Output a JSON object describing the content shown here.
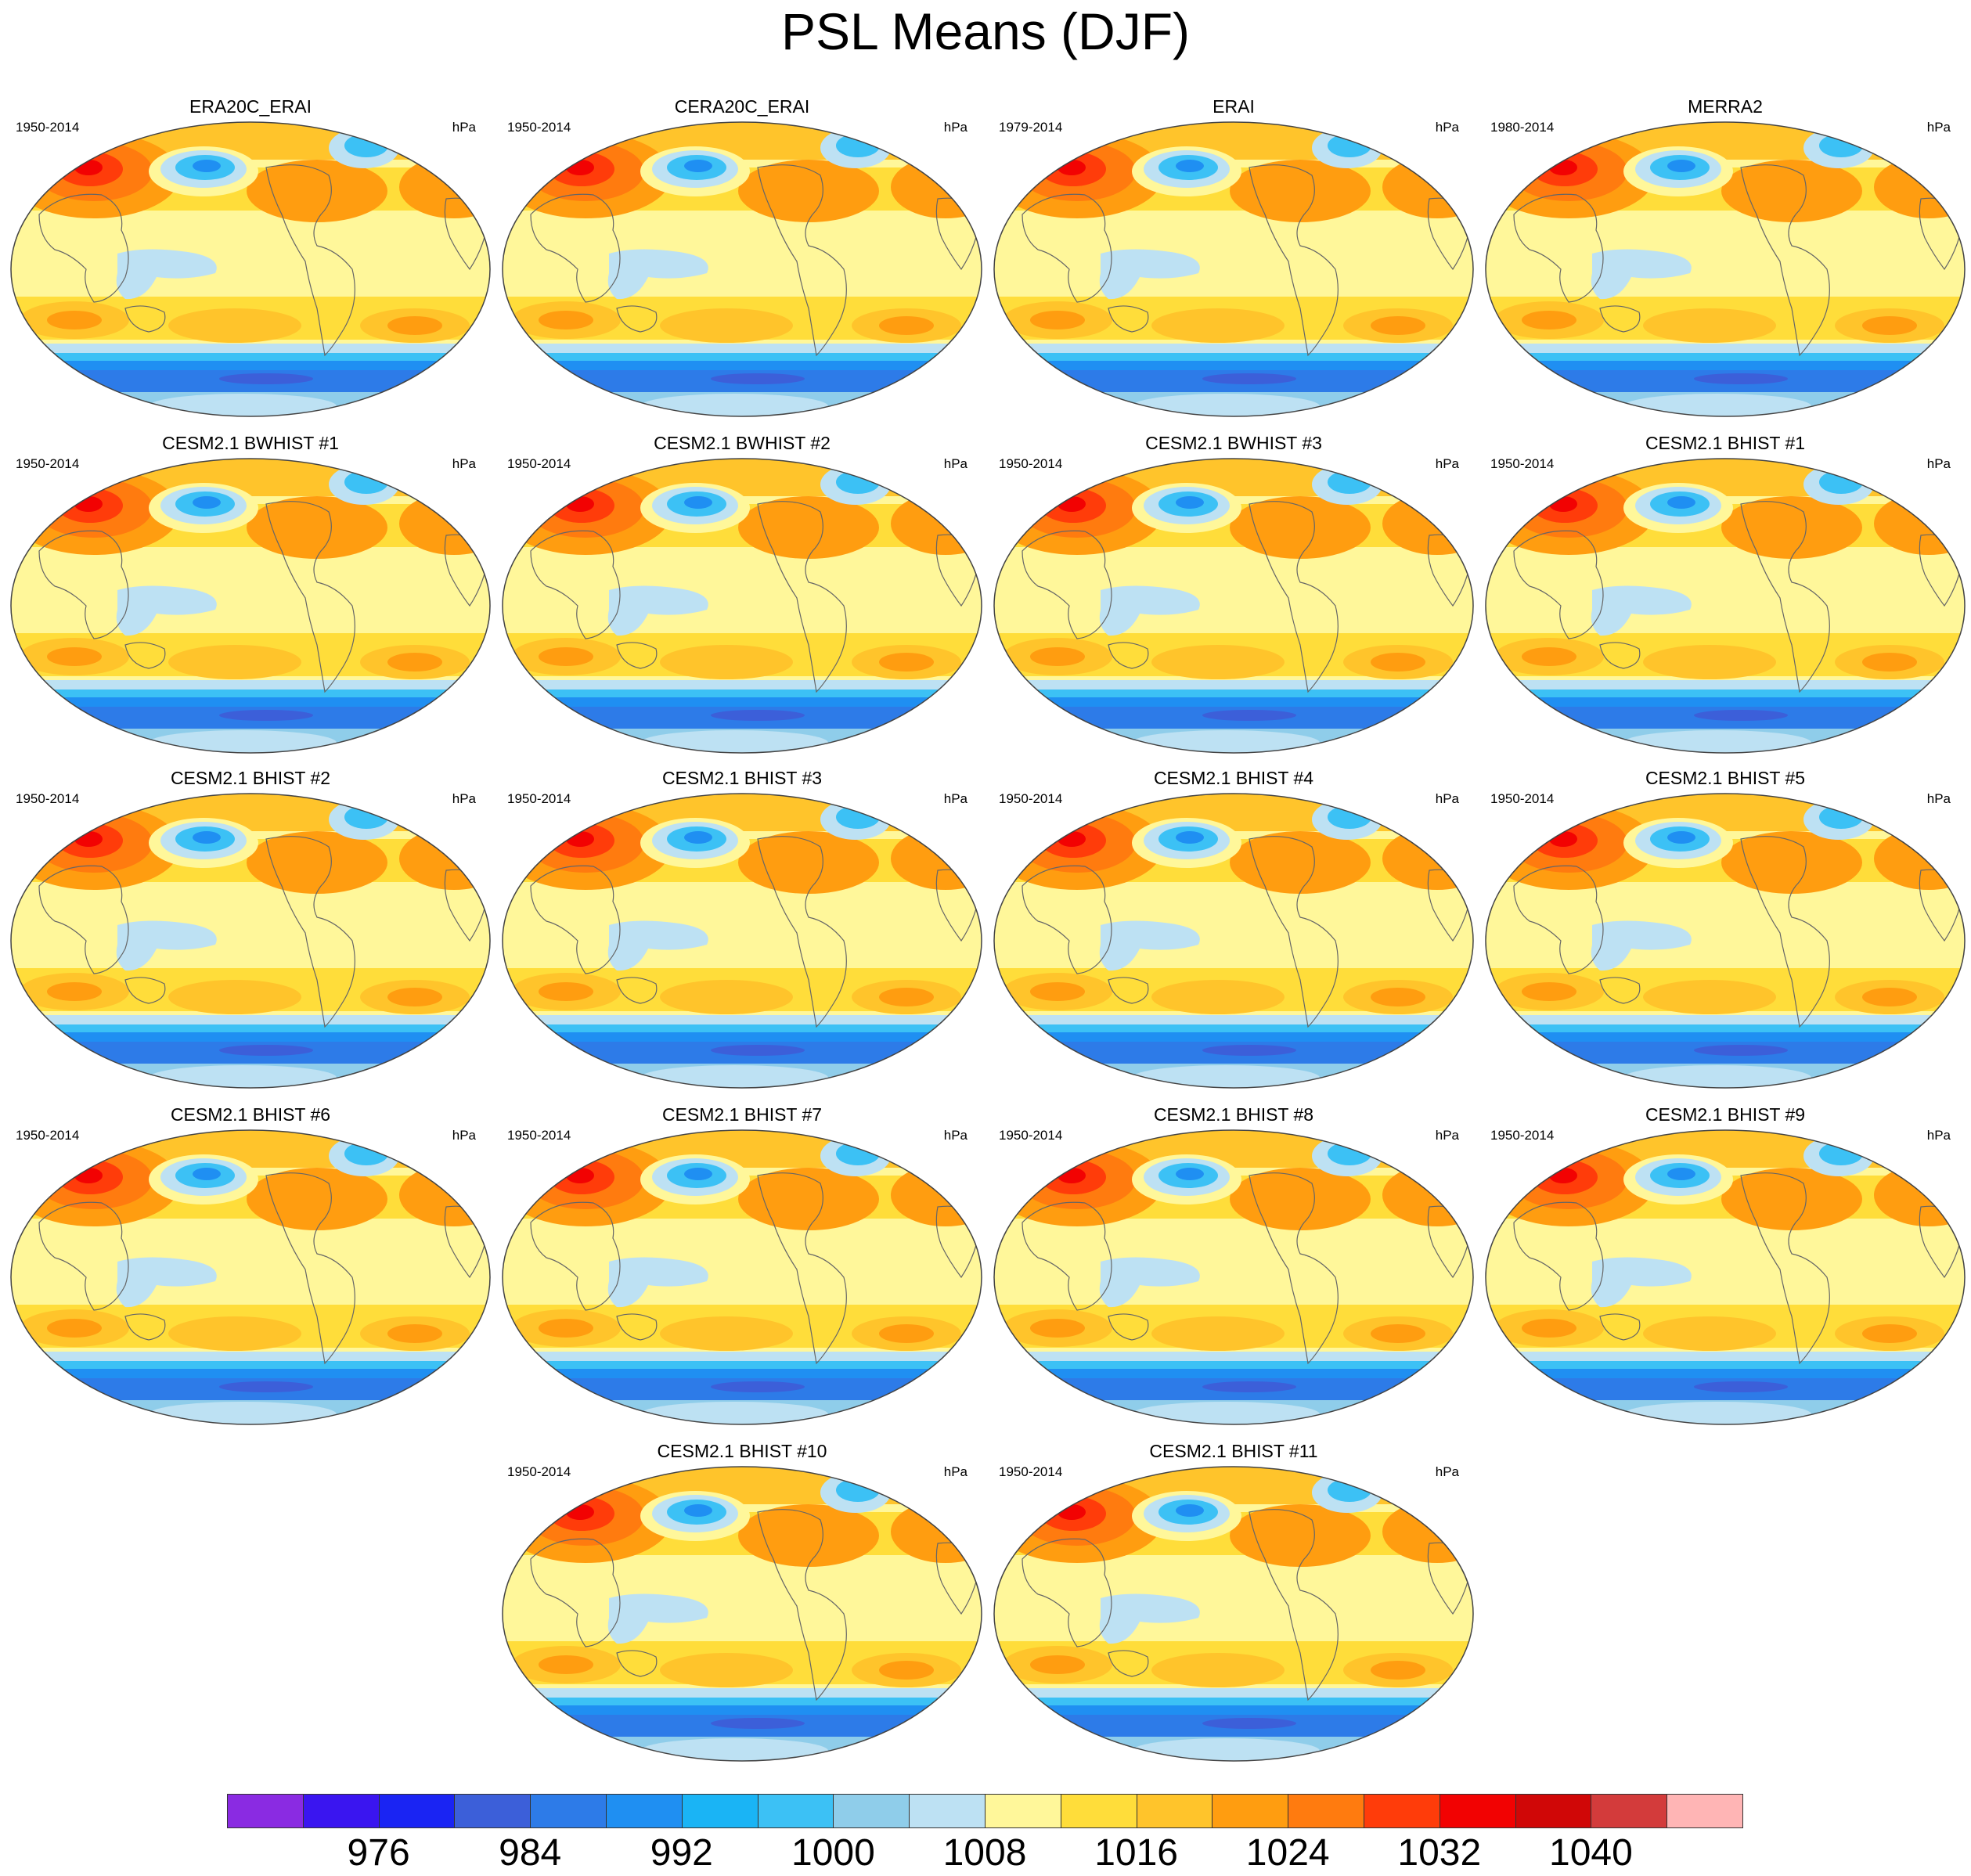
{
  "title": "PSL Means (DJF)",
  "units": "hPa",
  "panels": [
    {
      "title": "ERA20C_ERAI",
      "period": "1950-2014"
    },
    {
      "title": "CERA20C_ERAI",
      "period": "1950-2014"
    },
    {
      "title": "ERAI",
      "period": "1979-2014"
    },
    {
      "title": "MERRA2",
      "period": "1980-2014"
    },
    {
      "title": "CESM2.1 BWHIST #1",
      "period": "1950-2014"
    },
    {
      "title": "CESM2.1 BWHIST #2",
      "period": "1950-2014"
    },
    {
      "title": "CESM2.1 BWHIST #3",
      "period": "1950-2014"
    },
    {
      "title": "CESM2.1 BHIST #1",
      "period": "1950-2014"
    },
    {
      "title": "CESM2.1 BHIST #2",
      "period": "1950-2014"
    },
    {
      "title": "CESM2.1 BHIST #3",
      "period": "1950-2014"
    },
    {
      "title": "CESM2.1 BHIST #4",
      "period": "1950-2014"
    },
    {
      "title": "CESM2.1 BHIST #5",
      "period": "1950-2014"
    },
    {
      "title": "CESM2.1 BHIST #6",
      "period": "1950-2014"
    },
    {
      "title": "CESM2.1 BHIST #7",
      "period": "1950-2014"
    },
    {
      "title": "CESM2.1 BHIST #8",
      "period": "1950-2014"
    },
    {
      "title": "CESM2.1 BHIST #9",
      "period": "1950-2014"
    },
    {
      "title": "CESM2.1 BHIST #10",
      "period": "1950-2014"
    },
    {
      "title": "CESM2.1 BHIST #11",
      "period": "1950-2014"
    }
  ],
  "colorbar": {
    "colors": [
      "#8a2be2",
      "#3a15f0",
      "#1a24f3",
      "#3c5fd9",
      "#2d7be8",
      "#1f8ff2",
      "#1ab4f5",
      "#3cc1f5",
      "#8fcdea",
      "#bde1f3",
      "#fff79a",
      "#ffdd3a",
      "#ffc42b",
      "#ff9d10",
      "#ff7b0f",
      "#ff3c0a",
      "#f20202",
      "#d00707",
      "#d33b3b",
      "#ffb5b5"
    ],
    "labels": [
      "976",
      "984",
      "992",
      "1000",
      "1008",
      "1016",
      "1024",
      "1032",
      "1040"
    ]
  }
}
